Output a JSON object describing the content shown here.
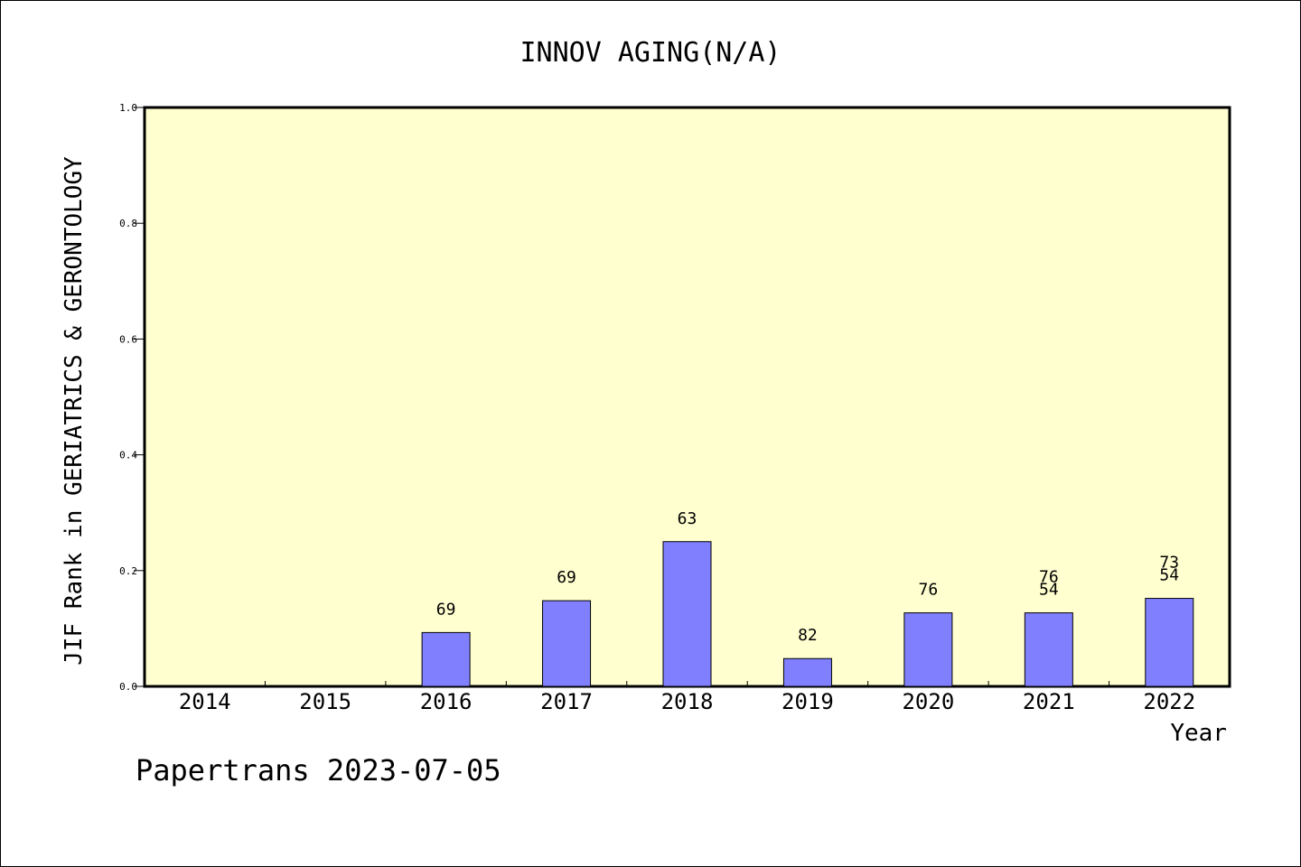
{
  "chart_data": {
    "type": "bar",
    "title": "INNOV AGING(N/A)",
    "xlabel": "Year",
    "ylabel": "JIF Rank in GERIATRICS & GERONTOLOGY",
    "categories": [
      "2014",
      "2015",
      "2016",
      "2017",
      "2018",
      "2019",
      "2020",
      "2021",
      "2022"
    ],
    "values": [
      null,
      null,
      0.093,
      0.148,
      0.25,
      0.048,
      0.127,
      0.127,
      0.152
    ],
    "bar_labels": [
      [],
      [],
      [
        "69"
      ],
      [
        "69"
      ],
      [
        "63"
      ],
      [
        "82"
      ],
      [
        "76"
      ],
      [
        "76",
        "54"
      ],
      [
        "73",
        "54"
      ]
    ],
    "ylim": [
      0.0,
      1.0
    ],
    "yticks": [
      "0.0",
      "0.2",
      "0.4",
      "0.6",
      "0.8",
      "1.0"
    ],
    "grid": false,
    "legend": "none",
    "colors": {
      "plot_bg": "#ffffd0",
      "bar": "#8080ff"
    }
  },
  "footer": {
    "credit": "Papertrans 2023-07-05"
  }
}
